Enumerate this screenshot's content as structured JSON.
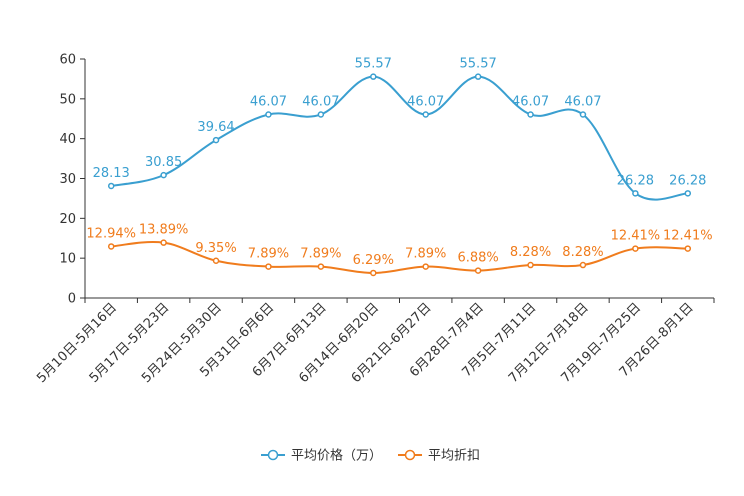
{
  "chart_data": {
    "type": "line",
    "categories": [
      "5月10日-5月16日",
      "5月17日-5月23日",
      "5月24日-5月30日",
      "5月31日-6月6日",
      "6月7日-6月13日",
      "6月14日-6月20日",
      "6月21日-6月27日",
      "6月28日-7月4日",
      "7月5日-7月11日",
      "7月12日-7月18日",
      "7月19日-7月25日",
      "7月26日-8月1日"
    ],
    "series": [
      {
        "name": "平均价格（万）",
        "color": "#3a9fd0",
        "values": [
          28.13,
          30.85,
          39.64,
          46.07,
          46.07,
          55.57,
          46.07,
          55.57,
          46.07,
          46.07,
          26.28,
          26.28
        ],
        "labels": [
          "28.13",
          "30.85",
          "39.64",
          "46.07",
          "46.07",
          "55.57",
          "46.07",
          "55.57",
          "46.07",
          "46.07",
          "26.28",
          "26.28"
        ]
      },
      {
        "name": "平均折扣",
        "color": "#f07c1d",
        "values": [
          12.94,
          13.89,
          9.35,
          7.89,
          7.89,
          6.29,
          7.89,
          6.88,
          8.28,
          8.28,
          12.41,
          12.41
        ],
        "labels": [
          "12.94%",
          "13.89%",
          "9.35%",
          "7.89%",
          "7.89%",
          "6.29%",
          "7.89%",
          "6.88%",
          "8.28%",
          "8.28%",
          "12.41%",
          "12.41%"
        ]
      }
    ],
    "y_ticks": [
      "0",
      "10",
      "20",
      "30",
      "40",
      "50",
      "60"
    ],
    "ylim": [
      0,
      60
    ],
    "title": "",
    "xlabel": "",
    "ylabel": "",
    "grid": false,
    "legend_position": "bottom-center"
  }
}
